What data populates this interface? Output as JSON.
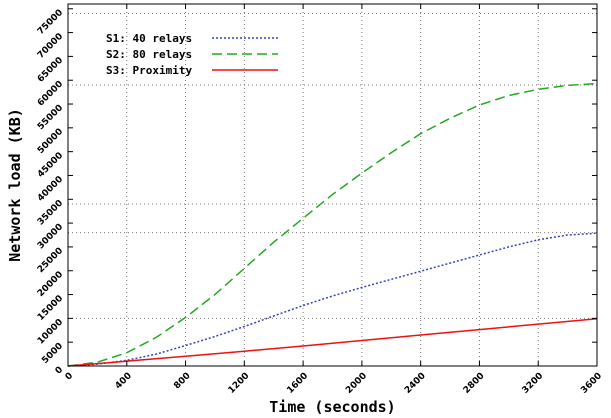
{
  "chart_data": {
    "type": "line",
    "title": "",
    "xlabel": "Time (seconds)",
    "ylabel": "Network load (KB)",
    "xlim": [
      0,
      3600
    ],
    "ylim": [
      0,
      76000
    ],
    "x_ticks": [
      0,
      400,
      800,
      1200,
      1600,
      2000,
      2400,
      2800,
      3200,
      3600
    ],
    "y_ticks": [
      0,
      5000,
      10000,
      15000,
      20000,
      25000,
      30000,
      35000,
      40000,
      45000,
      50000,
      55000,
      60000,
      65000,
      70000,
      75000
    ],
    "grid": "vertical dotted at x ticks, horizontal dotted reference lines",
    "h_reference_lines": [
      10000,
      28000,
      34000,
      59000,
      74000
    ],
    "legend_position": "top-left",
    "series": [
      {
        "name": "S1: 40 relays",
        "color": "#3344bb",
        "style": "dotted",
        "x": [
          0,
          200,
          400,
          600,
          800,
          1000,
          1200,
          1400,
          1600,
          1800,
          2000,
          2200,
          2400,
          2600,
          2800,
          3000,
          3200,
          3400,
          3600
        ],
        "y": [
          0,
          400,
          1200,
          2500,
          4300,
          6200,
          8300,
          10500,
          12700,
          14700,
          16500,
          18200,
          19900,
          21600,
          23300,
          25000,
          26500,
          27500,
          27900
        ]
      },
      {
        "name": "S2: 80 relays",
        "color": "#22aa22",
        "style": "dashed",
        "x": [
          0,
          200,
          400,
          600,
          800,
          1000,
          1200,
          1400,
          1600,
          1800,
          2000,
          2200,
          2400,
          2600,
          2800,
          3000,
          3200,
          3400,
          3600
        ],
        "y": [
          0,
          800,
          2800,
          6000,
          10200,
          15000,
          20500,
          26000,
          31000,
          36000,
          40500,
          44800,
          48800,
          52000,
          54800,
          56800,
          58100,
          58900,
          59300
        ]
      },
      {
        "name": "S3: Proximity",
        "color": "#ee1111",
        "style": "solid",
        "x": [
          0,
          400,
          800,
          1200,
          1600,
          2000,
          2400,
          2800,
          3200,
          3600
        ],
        "y": [
          0,
          1000,
          2050,
          3100,
          4200,
          5350,
          6500,
          7650,
          8800,
          9900
        ]
      }
    ]
  }
}
